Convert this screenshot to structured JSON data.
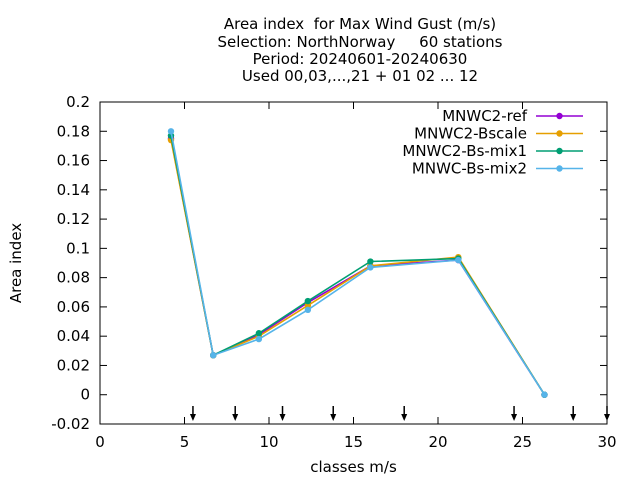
{
  "chart_data": {
    "type": "line",
    "title_lines": [
      "Area index  for Max Wind Gust (m/s)",
      "Selection: NorthNorway     60 stations",
      "Period: 20240601-20240630",
      "Used 00,03,...,21 + 01 02 ... 12"
    ],
    "xlabel": "classes m/s",
    "ylabel": "Area index",
    "xlim": [
      0,
      30
    ],
    "ylim": [
      -0.02,
      0.2
    ],
    "xticks": [
      0,
      5,
      10,
      15,
      20,
      25,
      30
    ],
    "xtick_labels": [
      "0",
      "5",
      "10",
      "15",
      "20",
      "25",
      "30"
    ],
    "yticks": [
      -0.02,
      0,
      0.02,
      0.04,
      0.06,
      0.08,
      0.1,
      0.12,
      0.14,
      0.16,
      0.18,
      0.2
    ],
    "ytick_labels": [
      "-0.02",
      "0",
      "0.02",
      "0.04",
      "0.06",
      "0.08",
      "0.1",
      "0.12",
      "0.14",
      "0.16",
      "0.18",
      "0.2"
    ],
    "grid": false,
    "legend_position": "top-right",
    "class_markers_x": [
      5.5,
      8,
      10.8,
      13.8,
      18,
      24.5,
      28,
      30
    ],
    "x": [
      4.2,
      6.7,
      9.4,
      12.3,
      16,
      21.2,
      26.3
    ],
    "series": [
      {
        "name": "MNWC2-ref",
        "color": "#9400d3",
        "marker": "circle",
        "values": [
          0.175,
          0.027,
          0.041,
          0.063,
          0.088,
          0.092,
          0.0
        ]
      },
      {
        "name": "MNWC2-Bscale",
        "color": "#e69f00",
        "marker": "circle",
        "values": [
          0.174,
          0.027,
          0.04,
          0.061,
          0.088,
          0.094,
          0.0
        ]
      },
      {
        "name": "MNWC2-Bs-mix1",
        "color": "#009e73",
        "marker": "circle",
        "values": [
          0.177,
          0.027,
          0.042,
          0.064,
          0.091,
          0.093,
          0.0
        ]
      },
      {
        "name": "MNWC-Bs-mix2",
        "color": "#56b4e9",
        "marker": "circle",
        "values": [
          0.18,
          0.027,
          0.038,
          0.058,
          0.087,
          0.092,
          0.0
        ]
      }
    ]
  }
}
